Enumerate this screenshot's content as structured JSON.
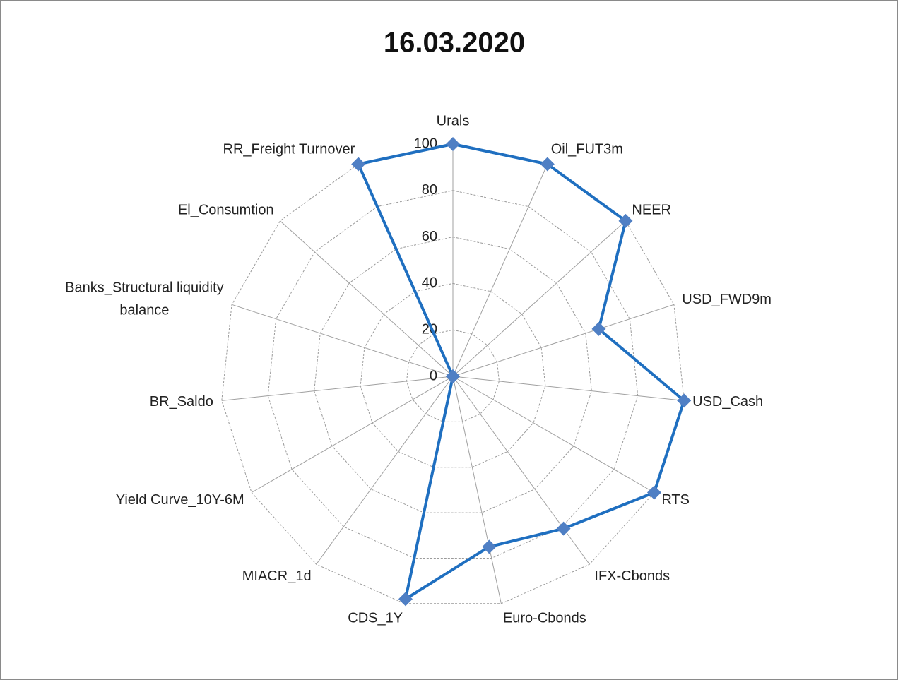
{
  "chart_data": {
    "type": "radar",
    "title": "16.03.2020",
    "categories": [
      "Urals",
      "Oil_FUT3m",
      "NEER",
      "USD_FWD9m",
      "USD_Cash",
      "RTS",
      "IFX-Cbonds",
      "Euro-Cbonds",
      "CDS_1Y",
      "MIACR_1d",
      "Yield Curve_10Y-6M",
      "BR_Saldo",
      "Banks_Structural liquidity balance",
      "El_Consumtion",
      "RR_Freight Turnover"
    ],
    "series": [
      {
        "color": "#1f6fc0",
        "marker_color": "#4f7fc4",
        "values": [
          100,
          100,
          100,
          66,
          100,
          100,
          81,
          75,
          98,
          0,
          0,
          0,
          0,
          0,
          100
        ]
      }
    ],
    "ylim": [
      0,
      100
    ],
    "yticks": [
      0,
      20,
      40,
      60,
      80,
      100
    ],
    "grid": true
  }
}
